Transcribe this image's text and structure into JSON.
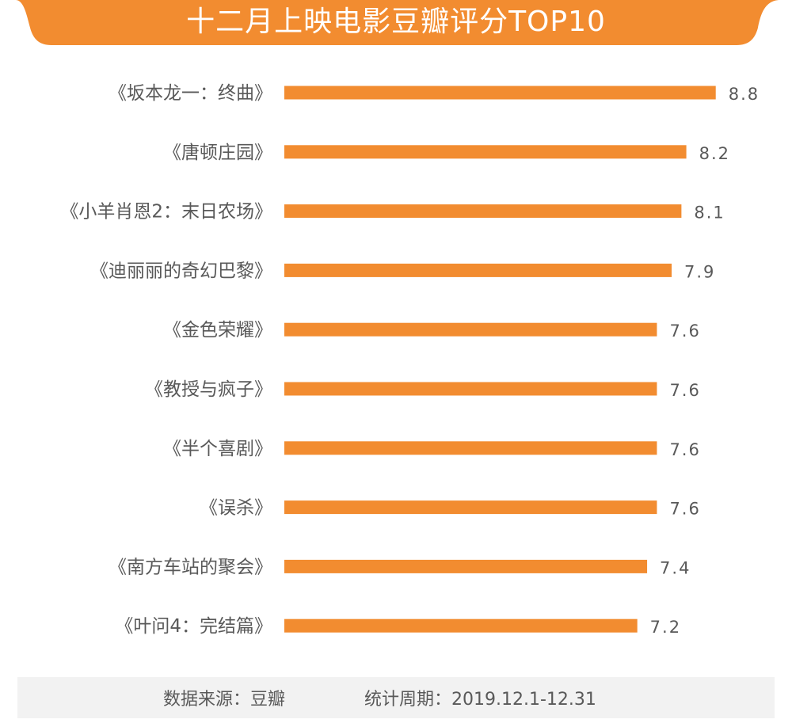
{
  "colors": {
    "bar": "#F28C30",
    "header": "#F28C30",
    "text": "#595959",
    "footer_bg": "#F2F2F2"
  },
  "chart_data": {
    "type": "bar",
    "orientation": "horizontal",
    "title": "十二月上映电影豆瓣评分TOP10",
    "categories": [
      "《坂本龙一：终曲》",
      "《唐顿庄园》",
      "《小羊肖恩2：末日农场》",
      "《迪丽丽的奇幻巴黎》",
      "《金色荣耀》",
      "《教授与疯子》",
      "《半个喜剧》",
      "《误杀》",
      "《南方车站的聚会》",
      "《叶问4：完结篇》"
    ],
    "values": [
      8.8,
      8.2,
      8.1,
      7.9,
      7.6,
      7.6,
      7.6,
      7.6,
      7.4,
      7.2
    ],
    "value_labels": [
      "8.8",
      "8.2",
      "8.1",
      "7.9",
      "7.6",
      "7.6",
      "7.6",
      "7.6",
      "7.4",
      "7.2"
    ],
    "xlim": [
      0,
      10
    ],
    "grid": false,
    "legend": "none"
  },
  "footer": {
    "source": "数据来源：豆瓣",
    "period": "统计周期：2019.12.1-12.31"
  }
}
